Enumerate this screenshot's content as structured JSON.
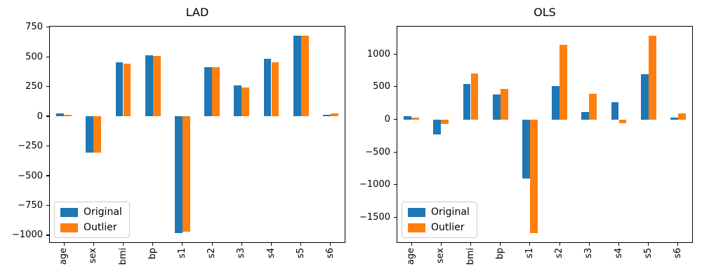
{
  "figure": {
    "background": "#ffffff"
  },
  "chart_data": [
    {
      "type": "bar",
      "title": "LAD",
      "categories": [
        "age",
        "sex",
        "bmi",
        "bp",
        "s1",
        "s2",
        "s3",
        "s4",
        "s5",
        "s6"
      ],
      "series": [
        {
          "name": "Original",
          "color": "#1f77b4",
          "values": [
            22,
            -305,
            453,
            510,
            -984,
            412,
            261,
            483,
            678,
            13
          ]
        },
        {
          "name": "Outlier",
          "color": "#ff7f0e",
          "values": [
            14,
            -303,
            440,
            508,
            -968,
            412,
            242,
            456,
            678,
            22
          ]
        }
      ],
      "yticks": [
        750,
        500,
        250,
        0,
        -250,
        -500,
        -750,
        -1000
      ],
      "ylim": [
        -1065,
        760
      ],
      "legend_position": "lower left",
      "xtick_rotation": 90,
      "grid": false
    },
    {
      "type": "bar",
      "title": "OLS",
      "categories": [
        "age",
        "sex",
        "bmi",
        "bp",
        "s1",
        "s2",
        "s3",
        "s4",
        "s5",
        "s6"
      ],
      "series": [
        {
          "name": "Original",
          "color": "#1f77b4",
          "values": [
            51,
            -233,
            536,
            378,
            -910,
            507,
            112,
            265,
            686,
            27
          ]
        },
        {
          "name": "Outlier",
          "color": "#ff7f0e",
          "values": [
            28,
            -73,
            707,
            465,
            -1737,
            1137,
            390,
            -56,
            1276,
            88
          ]
        }
      ],
      "yticks": [
        1000,
        500,
        0,
        -500,
        -1000,
        -1500
      ],
      "ylim": [
        -1890,
        1430
      ],
      "legend_position": "lower left",
      "xtick_rotation": 90,
      "grid": false
    }
  ]
}
